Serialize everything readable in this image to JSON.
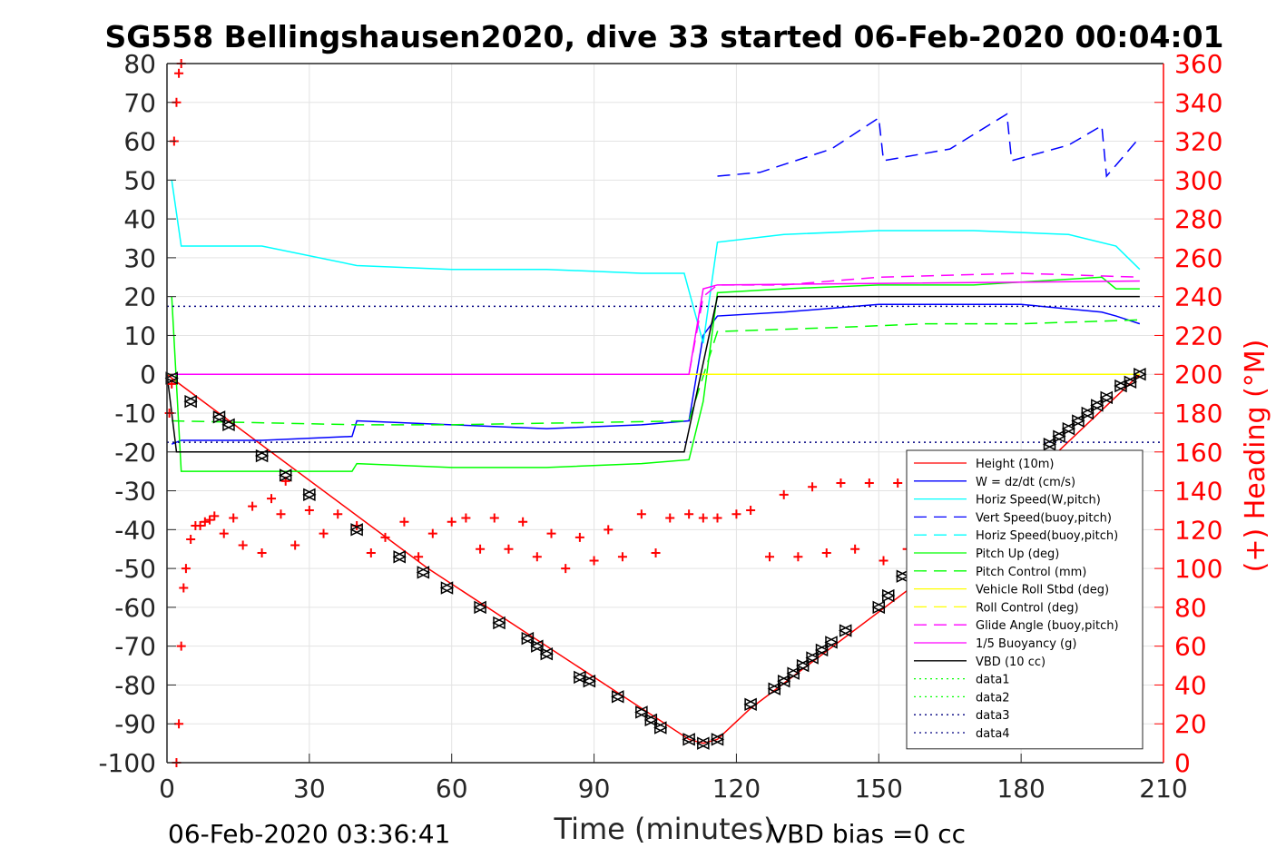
{
  "chart_data": {
    "type": "line",
    "title": "SG558 Bellingshausen2020, dive 33 started 06-Feb-2020 00:04:01",
    "xlabel": "Time (minutes)",
    "ylabel": "",
    "ylabel_right": "(+) Heading (°M)",
    "xlim": [
      0,
      210
    ],
    "ylim": [
      -100,
      80
    ],
    "ylim_right": [
      0,
      360
    ],
    "x_ticks": [
      "0",
      "30",
      "60",
      "90",
      "120",
      "150",
      "180",
      "210"
    ],
    "y_ticks": [
      "80",
      "70",
      "60",
      "50",
      "40",
      "30",
      "20",
      "10",
      "0",
      "-10",
      "-20",
      "-30",
      "-40",
      "-50",
      "-60",
      "-70",
      "-80",
      "-90",
      "-100"
    ],
    "y_ticks_right": [
      "360",
      "340",
      "320",
      "300",
      "280",
      "260",
      "240",
      "220",
      "200",
      "180",
      "160",
      "140",
      "120",
      "100",
      "80",
      "60",
      "40",
      "20",
      "0"
    ],
    "grid": true,
    "legend_position": "bottom-right",
    "footer_left": "06-Feb-2020 03:36:41",
    "footer_right": "VBD bias =0 cc",
    "series": [
      {
        "name": "Height (10m)",
        "color": "#ff0000",
        "style": "solid",
        "x": [
          0,
          1,
          55,
          110,
          113,
          116,
          123,
          160,
          205
        ],
        "y": [
          0,
          -1,
          -50,
          -94,
          -95,
          -94,
          -86,
          -52,
          0
        ]
      },
      {
        "name": "W = dz/dt (cm/s)",
        "color": "#0000ff",
        "style": "solid",
        "x": [
          1,
          3,
          20,
          39,
          40,
          60,
          80,
          100,
          110,
          113,
          116,
          130,
          150,
          170,
          180,
          197,
          200,
          205
        ],
        "y": [
          -18,
          -17,
          -17,
          -16,
          -12,
          -13,
          -14,
          -13,
          -12,
          10,
          15,
          16,
          18,
          18,
          18,
          16,
          15,
          13
        ]
      },
      {
        "name": "Horiz Speed(W,pitch)",
        "color": "#00ffff",
        "style": "solid",
        "x": [
          1,
          3,
          20,
          40,
          60,
          80,
          100,
          109,
          113,
          116,
          130,
          150,
          170,
          190,
          200,
          205
        ],
        "y": [
          50,
          33,
          33,
          28,
          27,
          27,
          26,
          26,
          8,
          34,
          36,
          37,
          37,
          36,
          33,
          27
        ]
      },
      {
        "name": "Vert Speed(buoy,pitch)",
        "color": "#0000ff",
        "style": "dashed",
        "x": [
          116,
          125,
          140,
          150,
          151,
          165,
          177,
          178,
          190,
          197,
          198,
          205
        ],
        "y": [
          51,
          52,
          58,
          66,
          55,
          58,
          67,
          55,
          59,
          64,
          51,
          61
        ]
      },
      {
        "name": "Horiz Speed(buoy,pitch)",
        "color": "#00ffff",
        "style": "dashed",
        "x": [
          1,
          110
        ],
        "y": [
          0,
          0
        ]
      },
      {
        "name": "Pitch Up (deg)",
        "color": "#00ff00",
        "style": "solid",
        "x": [
          1,
          3,
          39,
          40,
          60,
          80,
          100,
          110,
          113,
          116,
          130,
          150,
          170,
          197,
          200,
          205
        ],
        "y": [
          20,
          -25,
          -25,
          -23,
          -24,
          -24,
          -23,
          -22,
          -7,
          21,
          22,
          23,
          23,
          25,
          22,
          22
        ]
      },
      {
        "name": "Pitch Control (mm)",
        "color": "#00ff00",
        "style": "dashed",
        "x": [
          1,
          40,
          60,
          110,
          116,
          140,
          160,
          180,
          205
        ],
        "y": [
          -12,
          -13,
          -13,
          -12,
          11,
          12,
          13,
          13,
          14
        ]
      },
      {
        "name": "Vehicle Roll Stbd (deg)",
        "color": "#ffff00",
        "style": "solid",
        "x": [
          0,
          205
        ],
        "y": [
          0,
          0
        ]
      },
      {
        "name": "Roll Control (deg)",
        "color": "#ffff00",
        "style": "dashed",
        "x": [
          0,
          205
        ],
        "y": [
          0,
          0
        ]
      },
      {
        "name": "Glide Angle (buoy,pitch)",
        "color": "#ff00ff",
        "style": "dashed",
        "x": [
          1,
          110,
          113,
          116,
          130,
          150,
          180,
          205
        ],
        "y": [
          0,
          0,
          20,
          23,
          23,
          25,
          26,
          25
        ]
      },
      {
        "name": "1/5 Buoyancy (g)",
        "color": "#ff00ff",
        "style": "solid",
        "x": [
          1,
          110,
          113,
          116,
          205
        ],
        "y": [
          0,
          0,
          22,
          23,
          24
        ]
      },
      {
        "name": "VBD (10 cc)",
        "color": "#000000",
        "style": "solid",
        "x": [
          0,
          2,
          109,
          116,
          205
        ],
        "y": [
          0,
          -20,
          -20,
          20,
          20
        ]
      },
      {
        "name": "data1",
        "color": "#00ff00",
        "style": "dotted",
        "x": [],
        "y": []
      },
      {
        "name": "data2",
        "color": "#00ff00",
        "style": "dotted",
        "x": [],
        "y": []
      },
      {
        "name": "data3",
        "color": "#000080",
        "style": "dotted",
        "x": [
          0,
          210
        ],
        "y": [
          -17.5,
          -17.5
        ]
      },
      {
        "name": "data4",
        "color": "#000080",
        "style": "dotted",
        "x": [
          0,
          210
        ],
        "y": [
          17.5,
          17.5
        ]
      }
    ],
    "heading_series": {
      "name": "Heading (+)",
      "color": "#ff0000",
      "axis": "right",
      "marker": "+",
      "x": [
        2,
        2.5,
        3,
        3.5,
        4,
        5,
        6,
        7,
        8,
        9,
        10,
        12,
        14,
        16,
        18,
        20,
        22,
        24,
        25,
        27,
        30,
        33,
        36,
        40,
        43,
        46,
        50,
        53,
        56,
        60,
        63,
        66,
        69,
        72,
        75,
        78,
        81,
        84,
        87,
        90,
        93,
        96,
        100,
        103,
        106,
        110,
        113,
        116,
        120,
        123,
        127,
        130,
        133,
        136,
        139,
        142,
        145,
        148,
        151,
        154,
        156
      ],
      "y": [
        0,
        20,
        60,
        90,
        100,
        115,
        122,
        122,
        124,
        125,
        127,
        118,
        126,
        112,
        132,
        108,
        136,
        128,
        145,
        112,
        130,
        118,
        128,
        122,
        108,
        116,
        124,
        106,
        118,
        124,
        126,
        110,
        126,
        110,
        124,
        106,
        118,
        100,
        116,
        104,
        120,
        106,
        128,
        108,
        126,
        128,
        126,
        126,
        128,
        130,
        106,
        138,
        106,
        142,
        108,
        144,
        110,
        144,
        104,
        144,
        110
      ]
    },
    "heading_early": {
      "x": [
        0.5,
        1,
        1.5,
        2,
        2.5,
        3
      ],
      "y": [
        180,
        195,
        320,
        340,
        355,
        360
      ]
    },
    "vbd_markers": {
      "x": [
        1,
        5,
        11,
        13,
        20,
        25,
        30,
        40,
        49,
        54,
        59,
        66,
        70,
        76,
        78,
        80,
        87,
        89,
        95,
        100,
        102,
        104,
        110,
        113,
        116,
        123,
        128,
        130,
        132,
        134,
        136,
        138,
        140,
        143,
        150,
        152,
        155,
        186,
        188,
        190,
        192,
        194,
        196,
        198,
        201,
        203,
        205
      ],
      "y": [
        -1,
        -7,
        -11,
        -13,
        -21,
        -26,
        -31,
        -40,
        -47,
        -51,
        -55,
        -60,
        -64,
        -68,
        -70,
        -72,
        -78,
        -79,
        -83,
        -87,
        -89,
        -91,
        -94,
        -95,
        -94,
        -85,
        -81,
        -79,
        -77,
        -75,
        -73,
        -71,
        -69,
        -66,
        -60,
        -57,
        -52,
        -18,
        -16,
        -14,
        -12,
        -10,
        -8,
        -6,
        -3,
        -2,
        0
      ]
    }
  }
}
